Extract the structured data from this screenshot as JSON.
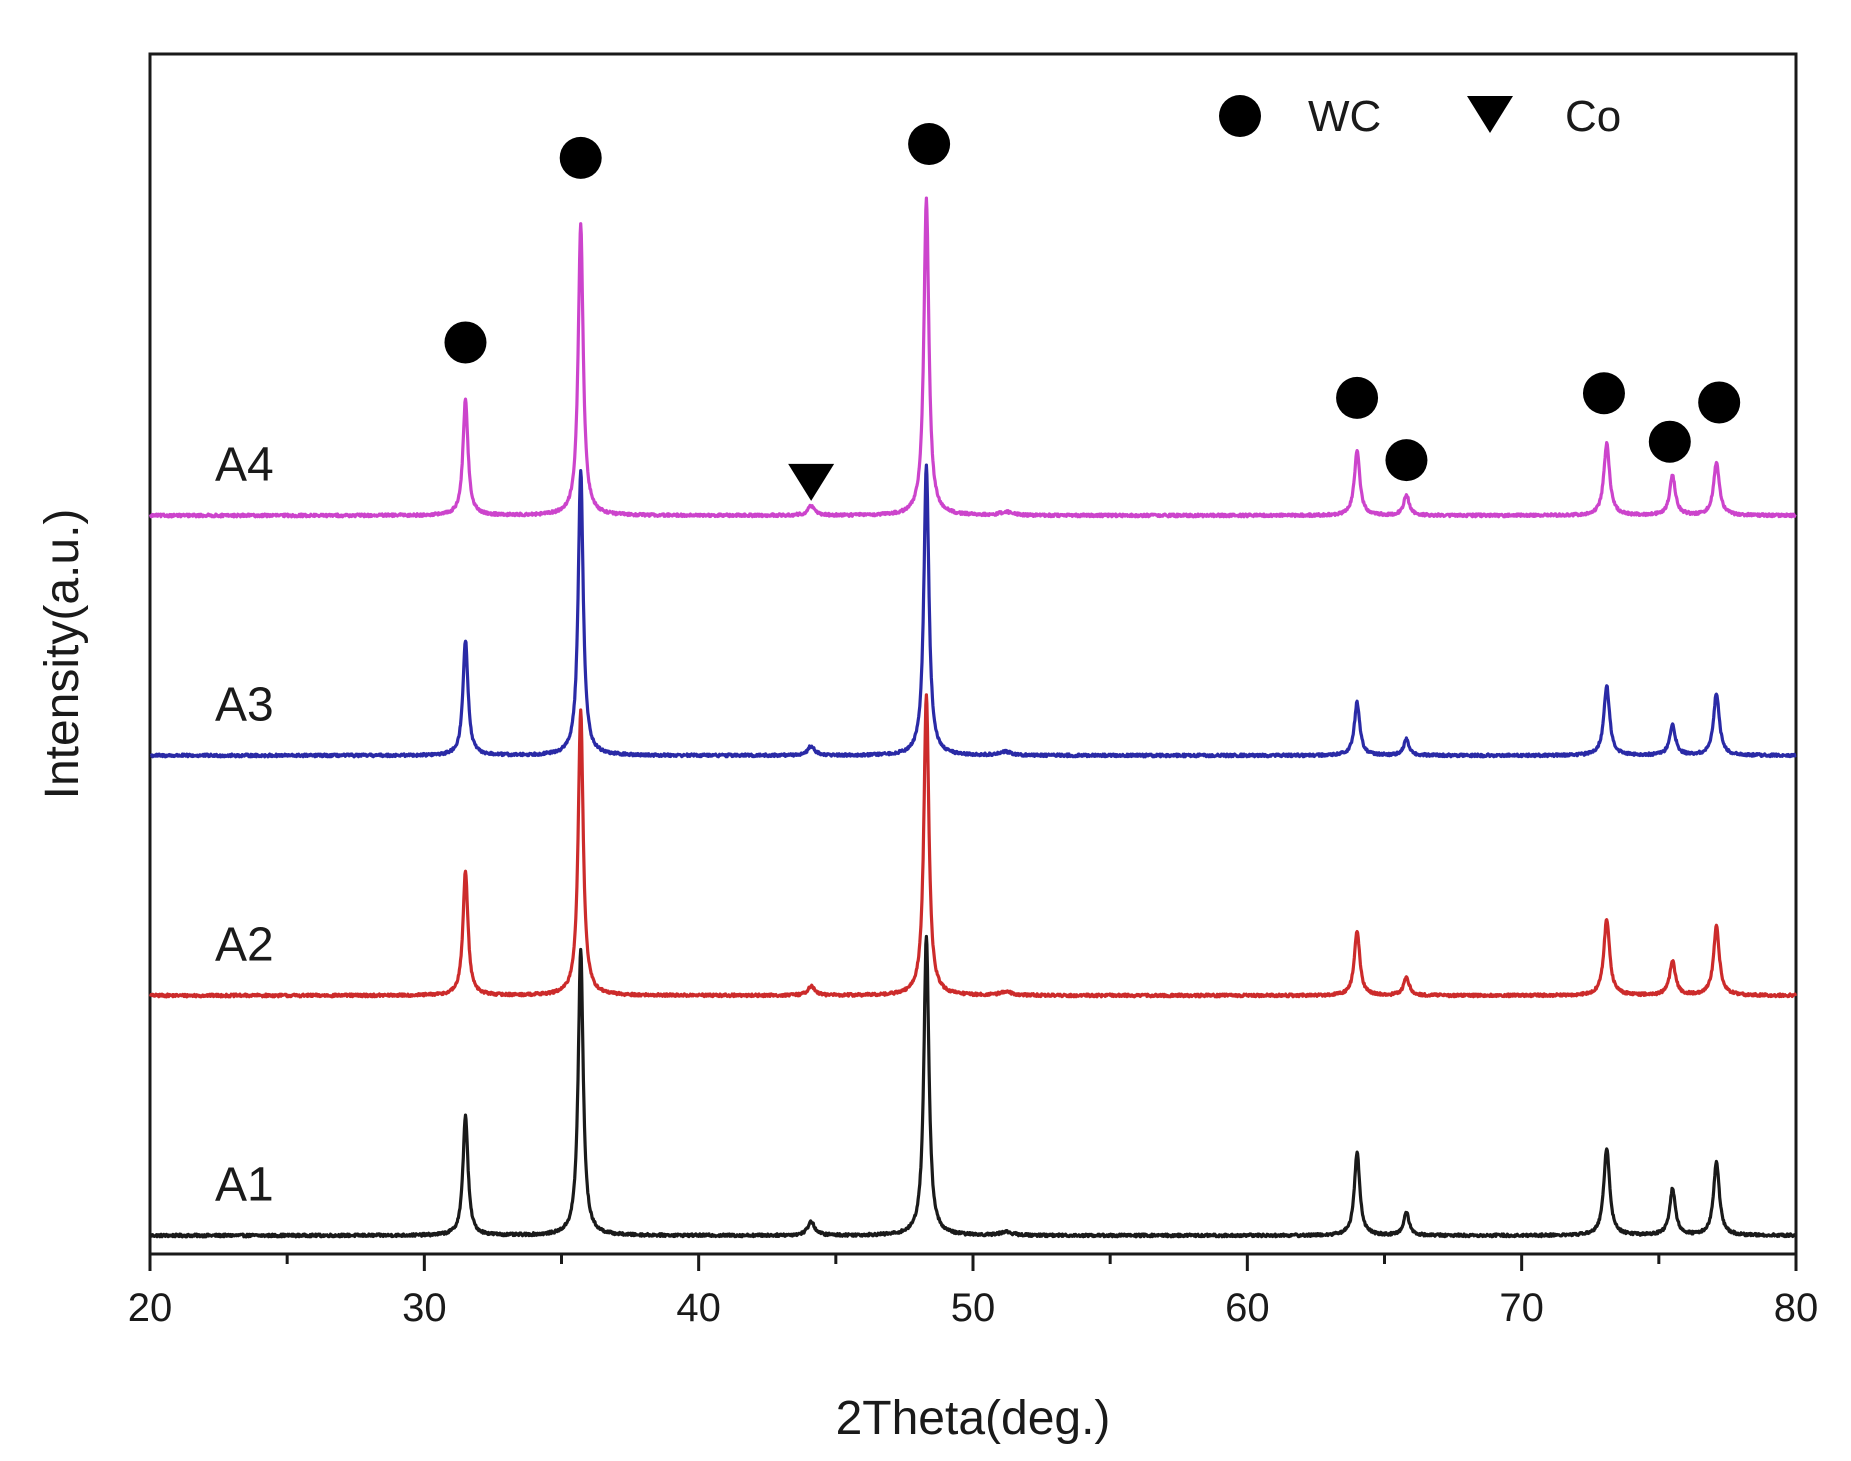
{
  "chart_data": {
    "type": "line",
    "title": "",
    "xlabel": "2Theta(deg.)",
    "ylabel": "Intensity(a.u.)",
    "xlim": [
      20,
      80
    ],
    "ylim": [
      0,
      5.2
    ],
    "x_ticks": [
      20,
      30,
      40,
      50,
      60,
      70,
      80
    ],
    "x_tick_labels": [
      "20",
      "30",
      "40",
      "50",
      "60",
      "70",
      "80"
    ],
    "x_minor_step": 5,
    "y_ticks_shown": false,
    "grid": false,
    "legend": {
      "placement": "top-right",
      "entries": [
        {
          "marker": "circle",
          "label": "WC"
        },
        {
          "marker": "triangle-down",
          "label": "Co"
        }
      ]
    },
    "series": [
      {
        "name": "A1",
        "color": "#1a1a1a",
        "baseline": 0.08,
        "peaks": [
          {
            "x": 31.5,
            "height": 0.52,
            "width": 0.13
          },
          {
            "x": 35.7,
            "height": 1.24,
            "width": 0.13
          },
          {
            "x": 44.1,
            "height": 0.06,
            "width": 0.18
          },
          {
            "x": 48.3,
            "height": 1.3,
            "width": 0.13
          },
          {
            "x": 51.2,
            "height": 0.015,
            "width": 0.3
          },
          {
            "x": 64.0,
            "height": 0.36,
            "width": 0.14
          },
          {
            "x": 65.8,
            "height": 0.1,
            "width": 0.14
          },
          {
            "x": 73.1,
            "height": 0.38,
            "width": 0.15
          },
          {
            "x": 75.5,
            "height": 0.2,
            "width": 0.15
          },
          {
            "x": 77.1,
            "height": 0.32,
            "width": 0.15
          }
        ]
      },
      {
        "name": "A2",
        "color": "#cc2b2b",
        "baseline": 1.12,
        "peaks": [
          {
            "x": 31.5,
            "height": 0.54,
            "width": 0.13
          },
          {
            "x": 35.7,
            "height": 1.24,
            "width": 0.13
          },
          {
            "x": 44.1,
            "height": 0.04,
            "width": 0.18
          },
          {
            "x": 48.3,
            "height": 1.3,
            "width": 0.13
          },
          {
            "x": 51.2,
            "height": 0.015,
            "width": 0.3
          },
          {
            "x": 64.0,
            "height": 0.28,
            "width": 0.14
          },
          {
            "x": 65.8,
            "height": 0.08,
            "width": 0.14
          },
          {
            "x": 73.1,
            "height": 0.33,
            "width": 0.15
          },
          {
            "x": 75.5,
            "height": 0.15,
            "width": 0.15
          },
          {
            "x": 77.1,
            "height": 0.3,
            "width": 0.15
          }
        ]
      },
      {
        "name": "A3",
        "color": "#2a2aa6",
        "baseline": 2.16,
        "peaks": [
          {
            "x": 31.5,
            "height": 0.5,
            "width": 0.13
          },
          {
            "x": 35.7,
            "height": 1.24,
            "width": 0.13
          },
          {
            "x": 44.1,
            "height": 0.04,
            "width": 0.18
          },
          {
            "x": 48.3,
            "height": 1.26,
            "width": 0.13
          },
          {
            "x": 51.2,
            "height": 0.015,
            "width": 0.3
          },
          {
            "x": 64.0,
            "height": 0.23,
            "width": 0.14
          },
          {
            "x": 65.8,
            "height": 0.07,
            "width": 0.14
          },
          {
            "x": 73.1,
            "height": 0.3,
            "width": 0.15
          },
          {
            "x": 75.5,
            "height": 0.13,
            "width": 0.15
          },
          {
            "x": 77.1,
            "height": 0.27,
            "width": 0.15
          }
        ]
      },
      {
        "name": "A4",
        "color": "#cc44cc",
        "baseline": 3.2,
        "peaks": [
          {
            "x": 31.5,
            "height": 0.5,
            "width": 0.13
          },
          {
            "x": 35.7,
            "height": 1.26,
            "width": 0.13
          },
          {
            "x": 44.1,
            "height": 0.04,
            "width": 0.18
          },
          {
            "x": 48.3,
            "height": 1.37,
            "width": 0.13
          },
          {
            "x": 51.2,
            "height": 0.015,
            "width": 0.3
          },
          {
            "x": 64.0,
            "height": 0.28,
            "width": 0.14
          },
          {
            "x": 65.8,
            "height": 0.09,
            "width": 0.14
          },
          {
            "x": 73.1,
            "height": 0.31,
            "width": 0.15
          },
          {
            "x": 75.5,
            "height": 0.17,
            "width": 0.15
          },
          {
            "x": 77.1,
            "height": 0.23,
            "width": 0.15
          }
        ]
      }
    ],
    "phase_markers": [
      {
        "phase": "WC",
        "marker": "circle",
        "x": 31.5,
        "y": 3.95
      },
      {
        "phase": "WC",
        "marker": "circle",
        "x": 35.7,
        "y": 4.75
      },
      {
        "phase": "WC",
        "marker": "circle",
        "x": 48.4,
        "y": 4.81
      },
      {
        "phase": "WC",
        "marker": "circle",
        "x": 64.0,
        "y": 3.71
      },
      {
        "phase": "WC",
        "marker": "circle",
        "x": 65.8,
        "y": 3.44
      },
      {
        "phase": "WC",
        "marker": "circle",
        "x": 73.0,
        "y": 3.73
      },
      {
        "phase": "WC",
        "marker": "circle",
        "x": 75.4,
        "y": 3.52
      },
      {
        "phase": "WC",
        "marker": "circle",
        "x": 77.2,
        "y": 3.69
      },
      {
        "phase": "Co",
        "marker": "triangle-down",
        "x": 44.1,
        "y": 3.35
      }
    ]
  }
}
